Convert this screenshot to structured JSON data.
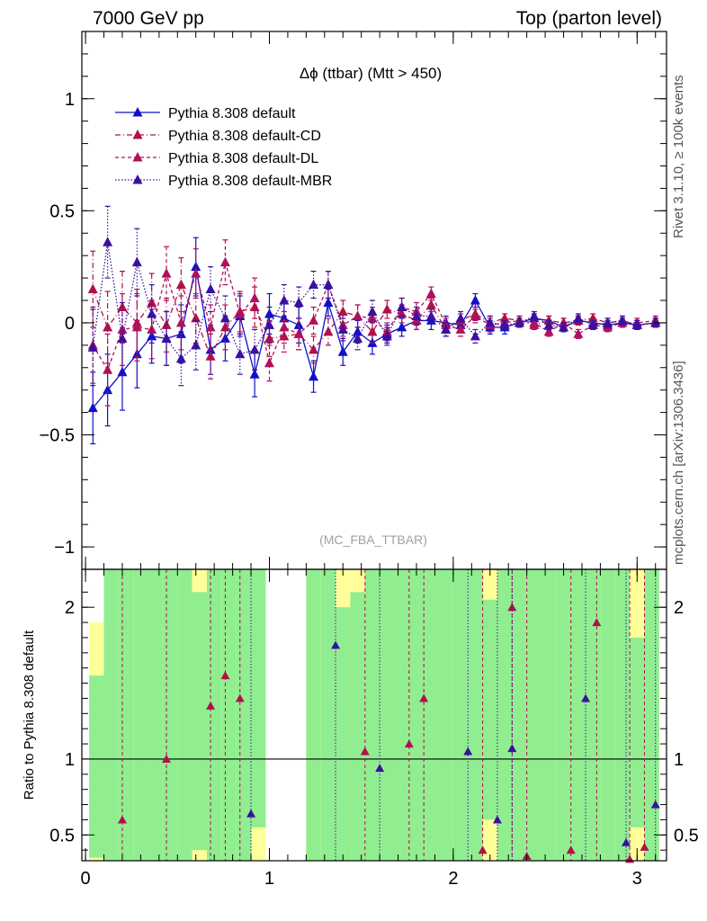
{
  "header": {
    "left": "7000 GeV pp",
    "right": "Top (parton level)"
  },
  "side": {
    "rivet": "Rivet 3.1.10, ≥ 100k events",
    "mcplots": "mcplots.cern.ch [arXiv:1306.3436]"
  },
  "plot_title": "Δϕ (ttbar) (Mtt > 450)",
  "watermark": "(MC_FBA_TTBAR)",
  "ratio_ylabel": "Ratio to Pythia 8.308 default",
  "chart_data": [
    {
      "type": "line",
      "title": "Δϕ (ttbar) (Mtt > 450)",
      "xlim": [
        -0.02,
        3.16
      ],
      "ylim": [
        -1.1,
        1.3
      ],
      "x_ticks": [
        "0",
        "1",
        "2",
        "3"
      ],
      "y_ticks": [
        "−1",
        "−0.5",
        "0",
        "0.5",
        "1"
      ],
      "legend_placement": "top-left",
      "x": [
        0.04,
        0.12,
        0.2,
        0.28,
        0.36,
        0.44,
        0.52,
        0.6,
        0.68,
        0.76,
        0.84,
        0.92,
        1.0,
        1.08,
        1.16,
        1.24,
        1.32,
        1.4,
        1.48,
        1.56,
        1.64,
        1.72,
        1.8,
        1.88,
        1.96,
        2.04,
        2.12,
        2.2,
        2.28,
        2.36,
        2.44,
        2.52,
        2.6,
        2.68,
        2.76,
        2.84,
        2.92,
        3.0,
        3.1
      ],
      "series": [
        {
          "name": "Pythia 8.308 default",
          "color": "#1010c8",
          "dash": "solid",
          "values": [
            -0.38,
            -0.3,
            -0.22,
            -0.14,
            -0.06,
            -0.07,
            -0.05,
            0.25,
            -0.12,
            -0.07,
            0.03,
            -0.23,
            0.04,
            0.02,
            -0.01,
            -0.24,
            0.09,
            -0.13,
            -0.04,
            -0.09,
            -0.05,
            -0.02,
            0.01,
            0.01,
            0.0,
            -0.01,
            0.1,
            -0.02,
            -0.02,
            0.0,
            0.02,
            0.01,
            -0.02,
            0.01,
            0.0,
            -0.01,
            0.0,
            -0.01,
            0.0
          ],
          "err": [
            0.16,
            0.16,
            0.17,
            0.15,
            0.12,
            0.12,
            0.13,
            0.13,
            0.11,
            0.1,
            0.09,
            0.1,
            0.09,
            0.08,
            0.08,
            0.07,
            0.06,
            0.06,
            0.05,
            0.05,
            0.04,
            0.04,
            0.04,
            0.04,
            0.03,
            0.03,
            0.03,
            0.03,
            0.03,
            0.02,
            0.02,
            0.02,
            0.02,
            0.02,
            0.02,
            0.02,
            0.02,
            0.02,
            0.02
          ]
        },
        {
          "name": "Pythia 8.308 default-CD",
          "color": "#b0104a",
          "dash": "dashdot",
          "values": [
            0.15,
            -0.02,
            0.07,
            0.0,
            0.09,
            -0.01,
            0.17,
            0.02,
            -0.15,
            -0.02,
            0.05,
            0.07,
            -0.07,
            -0.06,
            -0.05,
            -0.12,
            -0.04,
            0.05,
            0.03,
            -0.04,
            0.06,
            0.04,
            0.01,
            0.08,
            -0.03,
            0.01,
            0.04,
            0.0,
            0.02,
            0.01,
            -0.01,
            0.01,
            0.0,
            0.01,
            0.02,
            0.0,
            0.01,
            -0.01,
            0.0
          ],
          "err": [
            0.17,
            0.16,
            0.16,
            0.15,
            0.13,
            0.12,
            0.12,
            0.11,
            0.1,
            0.1,
            0.09,
            0.09,
            0.08,
            0.07,
            0.07,
            0.06,
            0.06,
            0.05,
            0.05,
            0.05,
            0.04,
            0.04,
            0.04,
            0.03,
            0.03,
            0.03,
            0.03,
            0.03,
            0.02,
            0.02,
            0.02,
            0.02,
            0.02,
            0.02,
            0.02,
            0.02,
            0.02,
            0.02,
            0.02
          ]
        },
        {
          "name": "Pythia 8.308 default-DL",
          "color": "#b0105e",
          "dash": "dashed",
          "values": [
            -0.1,
            -0.21,
            -0.03,
            -0.02,
            -0.03,
            0.22,
            0.0,
            0.22,
            -0.02,
            0.27,
            0.04,
            0.11,
            -0.18,
            -0.02,
            -0.05,
            0.01,
            0.17,
            -0.01,
            0.03,
            0.02,
            -0.04,
            0.07,
            0.05,
            0.13,
            -0.01,
            -0.03,
            0.03,
            -0.01,
            0.0,
            0.01,
            0.0,
            -0.04,
            0.0,
            -0.05,
            -0.01,
            -0.02,
            0.0,
            0.0,
            0.01
          ],
          "err": [
            0.17,
            0.16,
            0.16,
            0.15,
            0.13,
            0.12,
            0.12,
            0.11,
            0.1,
            0.1,
            0.09,
            0.09,
            0.08,
            0.07,
            0.07,
            0.06,
            0.06,
            0.05,
            0.05,
            0.05,
            0.04,
            0.04,
            0.04,
            0.03,
            0.03,
            0.03,
            0.03,
            0.03,
            0.02,
            0.02,
            0.02,
            0.02,
            0.02,
            0.02,
            0.02,
            0.02,
            0.02,
            0.02,
            0.02
          ]
        },
        {
          "name": "Pythia 8.308 default-MBR",
          "color": "#3a10a0",
          "dash": "dotted",
          "values": [
            -0.11,
            0.36,
            -0.07,
            0.27,
            0.04,
            -0.07,
            -0.16,
            -0.1,
            0.15,
            0.02,
            -0.14,
            -0.12,
            -0.01,
            0.1,
            0.09,
            0.17,
            0.17,
            -0.03,
            -0.07,
            0.05,
            -0.06,
            0.07,
            0.03,
            0.03,
            -0.03,
            0.02,
            -0.06,
            0.0,
            -0.01,
            0.0,
            0.03,
            -0.01,
            -0.02,
            0.02,
            -0.01,
            0.0,
            0.01,
            -0.01,
            0.0
          ],
          "err": [
            0.17,
            0.16,
            0.16,
            0.15,
            0.13,
            0.12,
            0.12,
            0.11,
            0.1,
            0.1,
            0.09,
            0.09,
            0.08,
            0.07,
            0.07,
            0.06,
            0.06,
            0.05,
            0.05,
            0.05,
            0.04,
            0.04,
            0.04,
            0.03,
            0.03,
            0.03,
            0.03,
            0.03,
            0.02,
            0.02,
            0.02,
            0.02,
            0.02,
            0.02,
            0.02,
            0.02,
            0.02,
            0.02,
            0.02
          ]
        }
      ]
    },
    {
      "type": "line",
      "ylabel": "Ratio to Pythia 8.308 default",
      "xlim": [
        -0.02,
        3.16
      ],
      "ylim": [
        0.33,
        2.25
      ],
      "x_ticks": [
        "0",
        "1",
        "2",
        "3"
      ],
      "y_ticks": [
        "0.5",
        "1",
        "2"
      ],
      "reference_line": 1,
      "bands": {
        "green": "#90ee90",
        "yellow": "#ffff99",
        "x": [
          0.02,
          0.1,
          0.18,
          0.26,
          0.34,
          0.42,
          0.5,
          0.58,
          0.66,
          0.74,
          0.82,
          0.9,
          1.0,
          1.08,
          1.16,
          1.2,
          1.28,
          1.36,
          1.44,
          1.52,
          1.6,
          1.68,
          1.76,
          1.84,
          1.92,
          2.0,
          2.08,
          2.16,
          2.24,
          2.32,
          2.4,
          2.48,
          2.56,
          2.64,
          2.72,
          2.8,
          2.88,
          2.96,
          3.04
        ],
        "green_lo": [
          0.35,
          0.33,
          0.33,
          0.33,
          0.33,
          0.33,
          0.33,
          0.4,
          0.33,
          0.33,
          0.33,
          0.55,
          null,
          null,
          null,
          0.33,
          0.33,
          0.33,
          0.33,
          0.33,
          0.33,
          0.33,
          0.33,
          0.33,
          0.33,
          0.33,
          0.33,
          0.6,
          0.33,
          0.33,
          0.33,
          0.33,
          0.33,
          0.33,
          0.33,
          0.33,
          0.33,
          0.55,
          0.33
        ],
        "green_hi": [
          1.55,
          2.25,
          2.25,
          2.25,
          2.25,
          2.25,
          2.25,
          2.1,
          2.25,
          2.25,
          2.25,
          2.25,
          null,
          null,
          null,
          2.25,
          2.25,
          2.0,
          2.1,
          2.25,
          2.25,
          2.25,
          2.25,
          2.25,
          2.25,
          2.25,
          2.25,
          2.05,
          2.25,
          2.25,
          2.25,
          2.25,
          2.25,
          2.25,
          2.25,
          2.25,
          2.25,
          1.8,
          2.25
        ],
        "yellow_lo": [
          0.33,
          0.33,
          0.33,
          0.33,
          0.33,
          0.33,
          0.33,
          0.33,
          0.33,
          0.33,
          0.33,
          0.33,
          null,
          null,
          null,
          0.33,
          0.33,
          0.33,
          0.33,
          0.33,
          0.33,
          0.33,
          0.33,
          0.33,
          0.33,
          0.33,
          0.33,
          0.33,
          0.33,
          0.33,
          0.33,
          0.33,
          0.33,
          0.33,
          0.33,
          0.33,
          0.33,
          0.33,
          0.33
        ],
        "yellow_hi": [
          1.9,
          2.25,
          2.25,
          2.25,
          2.25,
          2.25,
          2.25,
          2.25,
          2.25,
          2.25,
          2.25,
          2.25,
          null,
          null,
          null,
          2.25,
          2.25,
          2.25,
          2.25,
          2.25,
          2.25,
          2.25,
          2.25,
          2.25,
          2.25,
          2.25,
          2.25,
          2.25,
          2.25,
          2.25,
          2.25,
          2.25,
          2.25,
          2.25,
          2.25,
          2.25,
          2.25,
          2.25,
          2.25
        ]
      },
      "series": [
        {
          "name": "Pythia 8.308 default-CD",
          "x": [
            0.2,
            0.44,
            0.68,
            0.76,
            0.84,
            1.52,
            1.76,
            1.84,
            2.16,
            2.32,
            2.4,
            2.64,
            2.78,
            2.96,
            3.04
          ],
          "values": [
            0.6,
            1.0,
            1.35,
            1.55,
            1.4,
            1.05,
            1.1,
            1.4,
            0.4,
            2.0,
            0.36,
            0.4,
            1.9,
            0.34,
            0.42
          ]
        },
        {
          "name": "Pythia 8.308 default-MBR",
          "x": [
            0.9,
            1.36,
            1.6,
            2.08,
            2.24,
            2.32,
            2.72,
            2.94,
            3.1
          ],
          "values": [
            0.64,
            1.75,
            0.94,
            1.05,
            0.6,
            1.07,
            1.4,
            0.45,
            0.7
          ]
        }
      ]
    }
  ]
}
